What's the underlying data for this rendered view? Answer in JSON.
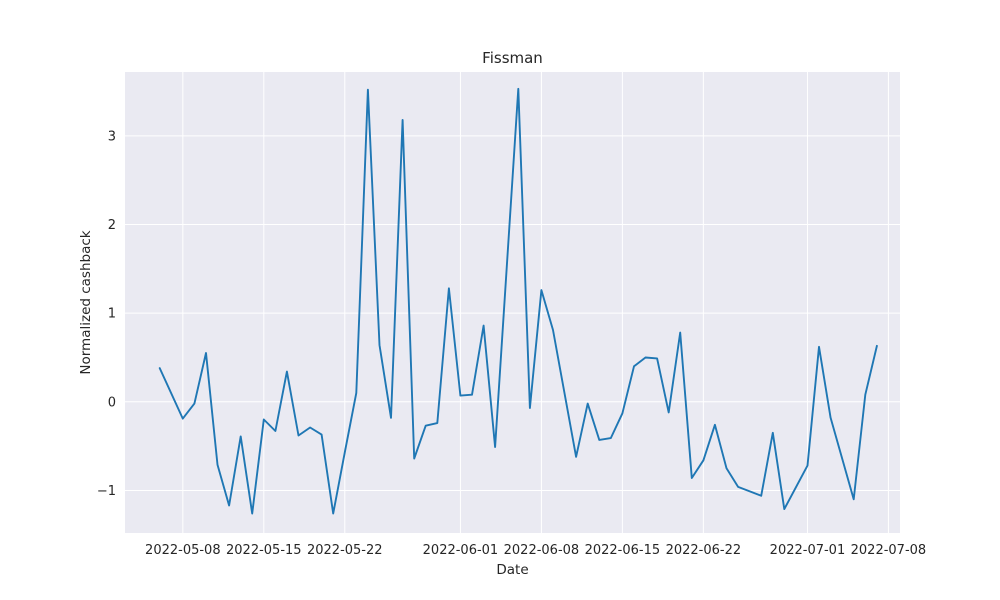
{
  "chart_data": {
    "type": "line",
    "title": "Fissman",
    "xlabel": "Date",
    "ylabel": "Normalized cashback",
    "xlim": [
      "2022-05-03",
      "2022-07-09"
    ],
    "ylim": [
      -1.48,
      3.72
    ],
    "x_ticks": [
      "2022-05-08",
      "2022-05-15",
      "2022-05-22",
      "2022-06-01",
      "2022-06-08",
      "2022-06-15",
      "2022-06-22",
      "2022-07-01",
      "2022-07-08"
    ],
    "y_ticks": [
      -1,
      0,
      1,
      2,
      3
    ],
    "y_tick_labels": [
      "−1",
      "0",
      "1",
      "2",
      "3"
    ],
    "grid": true,
    "colors": {
      "background": "#eaeaf2",
      "grid": "#ffffff",
      "line": "#1f77b4"
    },
    "series": [
      {
        "x": [
          "2022-05-06",
          "2022-05-08",
          "2022-05-09",
          "2022-05-10",
          "2022-05-11",
          "2022-05-12",
          "2022-05-13",
          "2022-05-14",
          "2022-05-15",
          "2022-05-16",
          "2022-05-17",
          "2022-05-18",
          "2022-05-19",
          "2022-05-20",
          "2022-05-21",
          "2022-05-22",
          "2022-05-23",
          "2022-05-24",
          "2022-05-25",
          "2022-05-26",
          "2022-05-27",
          "2022-05-28",
          "2022-05-29",
          "2022-05-30",
          "2022-05-31",
          "2022-06-01",
          "2022-06-02",
          "2022-06-03",
          "2022-06-04",
          "2022-06-06",
          "2022-06-07",
          "2022-06-08",
          "2022-06-09",
          "2022-06-11",
          "2022-06-12",
          "2022-06-13",
          "2022-06-14",
          "2022-06-15",
          "2022-06-16",
          "2022-06-17",
          "2022-06-18",
          "2022-06-19",
          "2022-06-20",
          "2022-06-21",
          "2022-06-22",
          "2022-06-23",
          "2022-06-24",
          "2022-06-25",
          "2022-06-27",
          "2022-06-28",
          "2022-06-29",
          "2022-07-01",
          "2022-07-02",
          "2022-07-03",
          "2022-07-05",
          "2022-07-06",
          "2022-07-07"
        ],
        "values": [
          0.38,
          -0.19,
          -0.02,
          0.55,
          -0.71,
          -1.17,
          -0.39,
          -1.26,
          -0.2,
          -0.33,
          0.34,
          -0.38,
          -0.29,
          -0.37,
          -1.26,
          -0.57,
          0.1,
          3.52,
          0.64,
          -0.18,
          3.18,
          -0.64,
          -0.27,
          -0.24,
          1.28,
          0.07,
          0.08,
          0.86,
          -0.51,
          3.53,
          -0.07,
          1.26,
          0.81,
          -0.62,
          -0.02,
          -0.43,
          -0.41,
          -0.13,
          0.4,
          0.5,
          0.49,
          -0.12,
          0.78,
          -0.86,
          -0.66,
          -0.26,
          -0.75,
          -0.96,
          -1.06,
          -0.35,
          -1.21,
          -0.72,
          0.62,
          -0.18,
          -1.1,
          0.08,
          0.63
        ]
      }
    ]
  }
}
